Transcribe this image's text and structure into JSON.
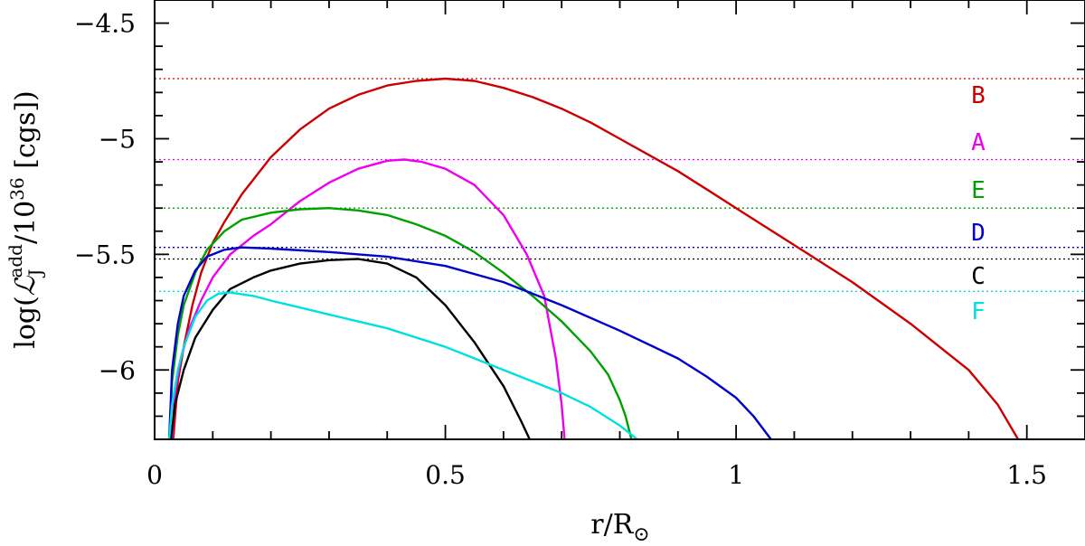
{
  "chart_data": {
    "type": "line",
    "xlabel": "r/R⊙",
    "ylabel": "log(ℒJ add/10^36 [cgs])",
    "ylabel_parts": {
      "prefix": "log(",
      "symbol": "ℒ",
      "subscript": "J",
      "superscript": "add",
      "middle": "/10",
      "exponent": "36",
      "suffix": " [cgs])"
    },
    "xlabel_parts": {
      "main": "r/R",
      "subscript": "⊙"
    },
    "xlim": [
      0,
      1.6
    ],
    "ylim": [
      -6.3,
      -4.4
    ],
    "x_ticks_major": [
      0,
      0.5,
      1,
      1.5
    ],
    "x_tick_labels": [
      "0",
      "0.5",
      "1",
      "1.5"
    ],
    "x_ticks_minor_step": 0.1,
    "y_ticks_major": [
      -4.5,
      -5,
      -5.5,
      -6
    ],
    "y_tick_labels": [
      "−4.5",
      "−5",
      "−5.5",
      "−6"
    ],
    "y_ticks_minor_step": 0.1,
    "grid": false,
    "series": [
      {
        "name": "B",
        "color": "#cc0000",
        "peak": -4.74,
        "points": [
          [
            0.032,
            -6.3
          ],
          [
            0.04,
            -6.05
          ],
          [
            0.05,
            -5.9
          ],
          [
            0.065,
            -5.72
          ],
          [
            0.08,
            -5.58
          ],
          [
            0.1,
            -5.45
          ],
          [
            0.12,
            -5.36
          ],
          [
            0.15,
            -5.24
          ],
          [
            0.2,
            -5.08
          ],
          [
            0.25,
            -4.96
          ],
          [
            0.3,
            -4.87
          ],
          [
            0.35,
            -4.81
          ],
          [
            0.4,
            -4.77
          ],
          [
            0.45,
            -4.75
          ],
          [
            0.5,
            -4.74
          ],
          [
            0.55,
            -4.75
          ],
          [
            0.6,
            -4.78
          ],
          [
            0.65,
            -4.82
          ],
          [
            0.7,
            -4.87
          ],
          [
            0.75,
            -4.93
          ],
          [
            0.8,
            -5.0
          ],
          [
            0.85,
            -5.07
          ],
          [
            0.9,
            -5.14
          ],
          [
            0.95,
            -5.22
          ],
          [
            1.0,
            -5.3
          ],
          [
            1.05,
            -5.38
          ],
          [
            1.1,
            -5.46
          ],
          [
            1.15,
            -5.54
          ],
          [
            1.2,
            -5.62
          ],
          [
            1.25,
            -5.71
          ],
          [
            1.3,
            -5.8
          ],
          [
            1.35,
            -5.9
          ],
          [
            1.4,
            -6.0
          ],
          [
            1.45,
            -6.15
          ],
          [
            1.485,
            -6.3
          ]
        ]
      },
      {
        "name": "A",
        "color": "#ee00ee",
        "peak": -5.09,
        "points": [
          [
            0.03,
            -6.3
          ],
          [
            0.035,
            -6.1
          ],
          [
            0.045,
            -5.95
          ],
          [
            0.06,
            -5.82
          ],
          [
            0.08,
            -5.7
          ],
          [
            0.1,
            -5.6
          ],
          [
            0.13,
            -5.5
          ],
          [
            0.17,
            -5.42
          ],
          [
            0.2,
            -5.37
          ],
          [
            0.25,
            -5.27
          ],
          [
            0.3,
            -5.19
          ],
          [
            0.35,
            -5.13
          ],
          [
            0.4,
            -5.095
          ],
          [
            0.43,
            -5.09
          ],
          [
            0.46,
            -5.1
          ],
          [
            0.5,
            -5.13
          ],
          [
            0.55,
            -5.2
          ],
          [
            0.6,
            -5.33
          ],
          [
            0.64,
            -5.5
          ],
          [
            0.67,
            -5.68
          ],
          [
            0.69,
            -5.95
          ],
          [
            0.7,
            -6.15
          ],
          [
            0.705,
            -6.3
          ]
        ]
      },
      {
        "name": "E",
        "color": "#00a000",
        "peak": -5.3,
        "points": [
          [
            0.025,
            -6.3
          ],
          [
            0.03,
            -6.05
          ],
          [
            0.04,
            -5.85
          ],
          [
            0.05,
            -5.72
          ],
          [
            0.07,
            -5.58
          ],
          [
            0.09,
            -5.48
          ],
          [
            0.12,
            -5.4
          ],
          [
            0.15,
            -5.35
          ],
          [
            0.2,
            -5.32
          ],
          [
            0.25,
            -5.305
          ],
          [
            0.3,
            -5.3
          ],
          [
            0.35,
            -5.31
          ],
          [
            0.4,
            -5.33
          ],
          [
            0.45,
            -5.37
          ],
          [
            0.5,
            -5.42
          ],
          [
            0.55,
            -5.49
          ],
          [
            0.6,
            -5.58
          ],
          [
            0.65,
            -5.68
          ],
          [
            0.7,
            -5.79
          ],
          [
            0.75,
            -5.92
          ],
          [
            0.78,
            -6.02
          ],
          [
            0.8,
            -6.13
          ],
          [
            0.81,
            -6.2
          ],
          [
            0.82,
            -6.3
          ]
        ]
      },
      {
        "name": "D",
        "color": "#0000cc",
        "peak": -5.47,
        "points": [
          [
            0.025,
            -6.3
          ],
          [
            0.03,
            -6.0
          ],
          [
            0.04,
            -5.8
          ],
          [
            0.05,
            -5.68
          ],
          [
            0.07,
            -5.57
          ],
          [
            0.09,
            -5.51
          ],
          [
            0.12,
            -5.48
          ],
          [
            0.15,
            -5.47
          ],
          [
            0.2,
            -5.475
          ],
          [
            0.3,
            -5.49
          ],
          [
            0.4,
            -5.51
          ],
          [
            0.5,
            -5.55
          ],
          [
            0.6,
            -5.62
          ],
          [
            0.7,
            -5.72
          ],
          [
            0.8,
            -5.83
          ],
          [
            0.9,
            -5.95
          ],
          [
            0.95,
            -6.03
          ],
          [
            1.0,
            -6.12
          ],
          [
            1.03,
            -6.2
          ],
          [
            1.06,
            -6.3
          ]
        ]
      },
      {
        "name": "C",
        "color": "#000000",
        "peak": -5.52,
        "points": [
          [
            0.028,
            -6.3
          ],
          [
            0.035,
            -6.15
          ],
          [
            0.05,
            -6.0
          ],
          [
            0.07,
            -5.86
          ],
          [
            0.1,
            -5.74
          ],
          [
            0.13,
            -5.65
          ],
          [
            0.17,
            -5.6
          ],
          [
            0.2,
            -5.57
          ],
          [
            0.25,
            -5.54
          ],
          [
            0.3,
            -5.525
          ],
          [
            0.35,
            -5.52
          ],
          [
            0.4,
            -5.54
          ],
          [
            0.45,
            -5.6
          ],
          [
            0.5,
            -5.72
          ],
          [
            0.55,
            -5.88
          ],
          [
            0.6,
            -6.07
          ],
          [
            0.63,
            -6.22
          ],
          [
            0.645,
            -6.3
          ]
        ]
      },
      {
        "name": "F",
        "color": "#00e0e0",
        "peak": -5.66,
        "points": [
          [
            0.025,
            -6.3
          ],
          [
            0.03,
            -6.15
          ],
          [
            0.04,
            -6.0
          ],
          [
            0.05,
            -5.9
          ],
          [
            0.07,
            -5.77
          ],
          [
            0.09,
            -5.7
          ],
          [
            0.11,
            -5.67
          ],
          [
            0.13,
            -5.665
          ],
          [
            0.17,
            -5.68
          ],
          [
            0.2,
            -5.7
          ],
          [
            0.25,
            -5.73
          ],
          [
            0.3,
            -5.76
          ],
          [
            0.4,
            -5.82
          ],
          [
            0.5,
            -5.9
          ],
          [
            0.6,
            -6.0
          ],
          [
            0.7,
            -6.1
          ],
          [
            0.75,
            -6.16
          ],
          [
            0.8,
            -6.24
          ],
          [
            0.83,
            -6.3
          ]
        ]
      }
    ],
    "labels_order": [
      "B",
      "A",
      "E",
      "D",
      "C",
      "F"
    ]
  }
}
